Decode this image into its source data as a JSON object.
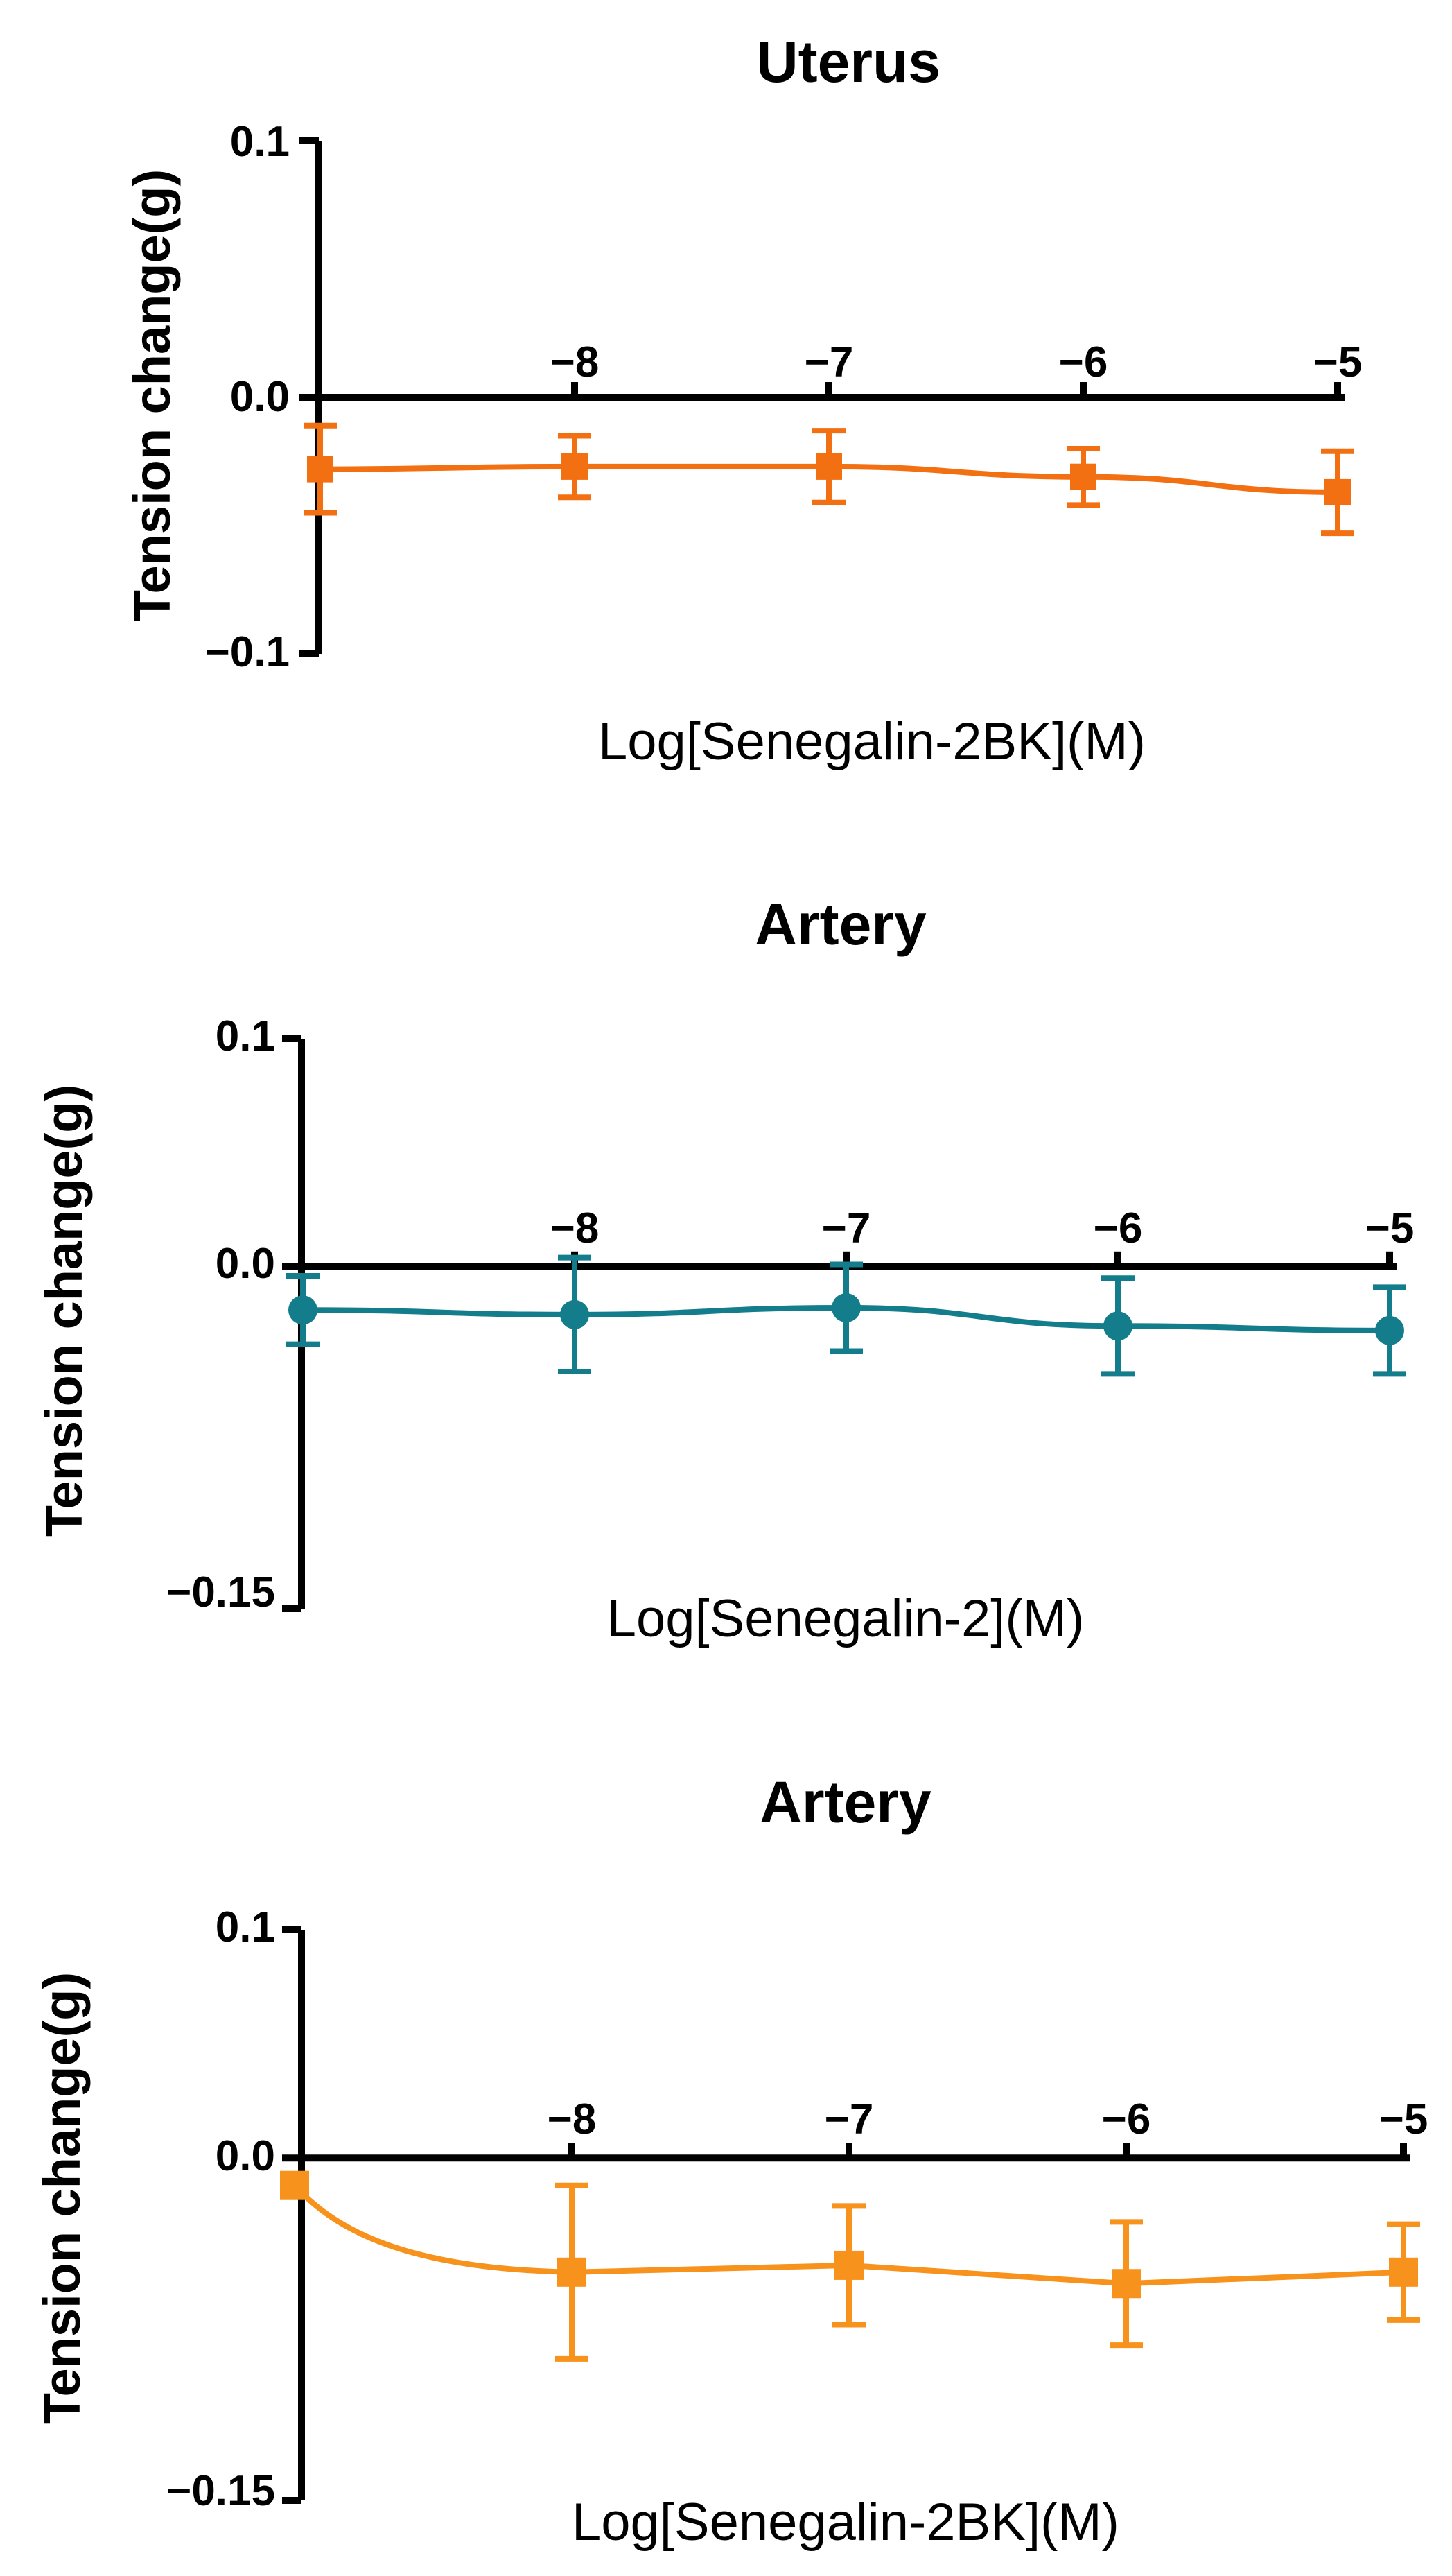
{
  "chart_data": [
    {
      "type": "line",
      "title": "Uterus",
      "xlabel": "Log[Senegalin-2BK](M)",
      "ylabel": "Tension change(g)",
      "ylim": [
        -0.1,
        0.1
      ],
      "yticks": [
        "0.1",
        "0.0",
        "−0.1"
      ],
      "xlim": [
        -9,
        -5
      ],
      "xticks": [
        "−8",
        "−7",
        "−6",
        "−5"
      ],
      "color": "#f26f12",
      "marker": "square",
      "series": [
        {
          "x": [
            -9,
            -8,
            -7,
            -6,
            -5
          ],
          "values": [
            -0.028,
            -0.027,
            -0.027,
            -0.031,
            -0.037
          ],
          "error": [
            0.017,
            0.012,
            0.014,
            0.011,
            0.016
          ]
        }
      ]
    },
    {
      "type": "line",
      "title": "Artery",
      "xlabel": "Log[Senegalin-2](M)",
      "ylabel": "Tension change(g)",
      "ylim": [
        -0.15,
        0.1
      ],
      "yticks": [
        "0.1",
        "0.0",
        "−0.15"
      ],
      "xlim": [
        -9,
        -5
      ],
      "xticks": [
        "−8",
        "−7",
        "−6",
        "−5"
      ],
      "color": "#147d8c",
      "marker": "circle",
      "series": [
        {
          "x": [
            -9,
            -8,
            -7,
            -6,
            -5
          ],
          "values": [
            -0.019,
            -0.021,
            -0.018,
            -0.026,
            -0.028
          ],
          "error": [
            0.015,
            0.025,
            0.019,
            0.021,
            0.019
          ]
        }
      ]
    },
    {
      "type": "line",
      "title": "Artery",
      "xlabel": "Log[Senegalin-2BK](M)",
      "ylabel": "Tension change(g)",
      "ylim": [
        -0.15,
        0.1
      ],
      "yticks": [
        "0.1",
        "0.0",
        "−0.15"
      ],
      "xlim": [
        -9,
        -5
      ],
      "xticks": [
        "−8",
        "−7",
        "−6",
        "−5"
      ],
      "color": "#f7921c",
      "marker": "square",
      "series": [
        {
          "x": [
            -9,
            -8,
            -7,
            -6,
            -5
          ],
          "values": [
            -0.012,
            -0.05,
            -0.047,
            -0.055,
            -0.05
          ],
          "error": [
            0.0,
            0.038,
            0.026,
            0.027,
            0.021
          ]
        }
      ]
    }
  ]
}
